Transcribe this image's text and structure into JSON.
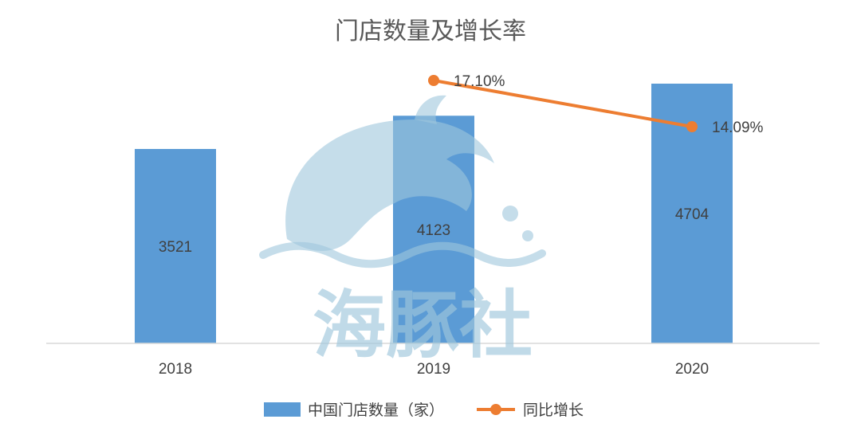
{
  "chart_data": {
    "type": "bar",
    "title": "门店数量及增长率",
    "categories": [
      "2018",
      "2019",
      "2020"
    ],
    "series": [
      {
        "name": "中国门店数量（家）",
        "type": "bar",
        "values": [
          3521,
          4123,
          4704
        ],
        "value_labels": [
          "3521",
          "4123",
          "4704"
        ],
        "color": "#5b9bd5"
      },
      {
        "name": "同比增长",
        "type": "line",
        "values": [
          null,
          17.1,
          14.09
        ],
        "value_labels": [
          "",
          "17.10%",
          "14.09%"
        ],
        "unit": "%",
        "color": "#ed7d31"
      }
    ],
    "ylim_bars": [
      0,
      5000
    ],
    "ylim_line": [
      0,
      20
    ],
    "legend_position": "bottom",
    "grid": false
  },
  "watermark": {
    "text": "海豚社",
    "color": "#9fc7dc"
  }
}
